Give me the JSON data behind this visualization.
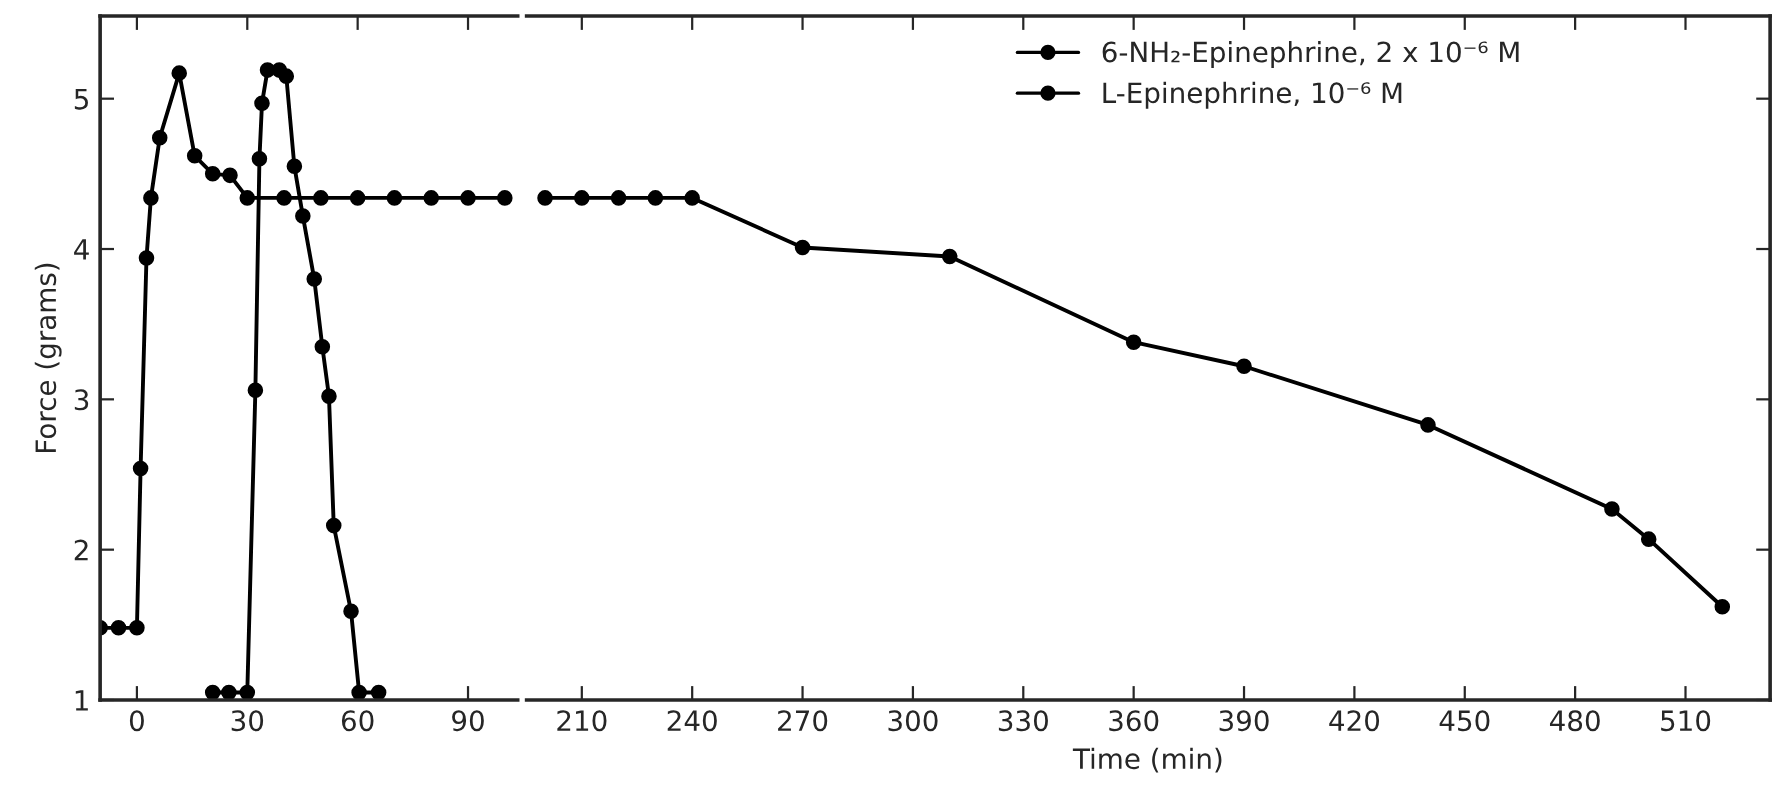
{
  "chart_data": [
    {
      "type": "line",
      "ylabel": "Force (grams)",
      "xlim": [
        -10,
        103.5
      ],
      "xticks": [
        0,
        30,
        60,
        90
      ],
      "ylim": [
        1,
        5.55
      ],
      "yticks": [
        1,
        2,
        3,
        4,
        5
      ],
      "grid": false,
      "marker": "circle",
      "line_style": "solid",
      "series": [
        {
          "color": "#000000",
          "x": [
            -10,
            -5,
            0,
            1,
            2.6,
            3.8,
            6.2,
            11.5,
            15.7,
            20.6,
            25.3,
            30,
            40,
            50,
            60,
            70,
            80,
            90,
            100
          ],
          "values": [
            1.48,
            1.48,
            1.48,
            2.54,
            3.94,
            4.34,
            4.74,
            5.17,
            4.62,
            4.5,
            4.49,
            4.34,
            4.34,
            4.34,
            4.34,
            4.34,
            4.34,
            4.34,
            4.34
          ]
        },
        {
          "color": "#000000",
          "x": [
            20.6,
            25,
            30,
            32.2,
            33.3,
            34,
            35.5,
            38.7,
            40.6,
            42.8,
            45.1,
            48.2,
            50.4,
            52.2,
            53.5,
            58.2,
            60.4,
            65.7
          ],
          "values": [
            1.05,
            1.05,
            1.05,
            3.06,
            4.6,
            4.97,
            5.19,
            5.19,
            5.15,
            4.55,
            4.22,
            3.8,
            3.35,
            3.02,
            2.16,
            1.59,
            1.05,
            1.05
          ]
        }
      ]
    },
    {
      "type": "line",
      "xlabel": "Time (min)",
      "xlim": [
        195,
        533
      ],
      "xticks": [
        210,
        240,
        270,
        300,
        330,
        360,
        390,
        420,
        450,
        480,
        510
      ],
      "ylim": [
        1,
        5.55
      ],
      "yticks": [
        1,
        2,
        3,
        4,
        5
      ],
      "tick_labels": "x",
      "grid": false,
      "legend": "top right",
      "marker": "circle",
      "line_style": "solid",
      "series": [
        {
          "name": "6-NH₂-Epinephrine, 2 x 10⁻⁶ M",
          "color": "#000000",
          "x": [
            200,
            210,
            220,
            230,
            240,
            270,
            310,
            360,
            390,
            440,
            490,
            500,
            520
          ],
          "values": [
            4.34,
            4.34,
            4.34,
            4.34,
            4.34,
            4.01,
            3.95,
            3.38,
            3.22,
            2.83,
            2.27,
            2.07,
            1.62
          ]
        },
        {
          "name": "L-Epinephrine, 10⁻⁶ M",
          "color": "#000000"
        }
      ]
    }
  ]
}
